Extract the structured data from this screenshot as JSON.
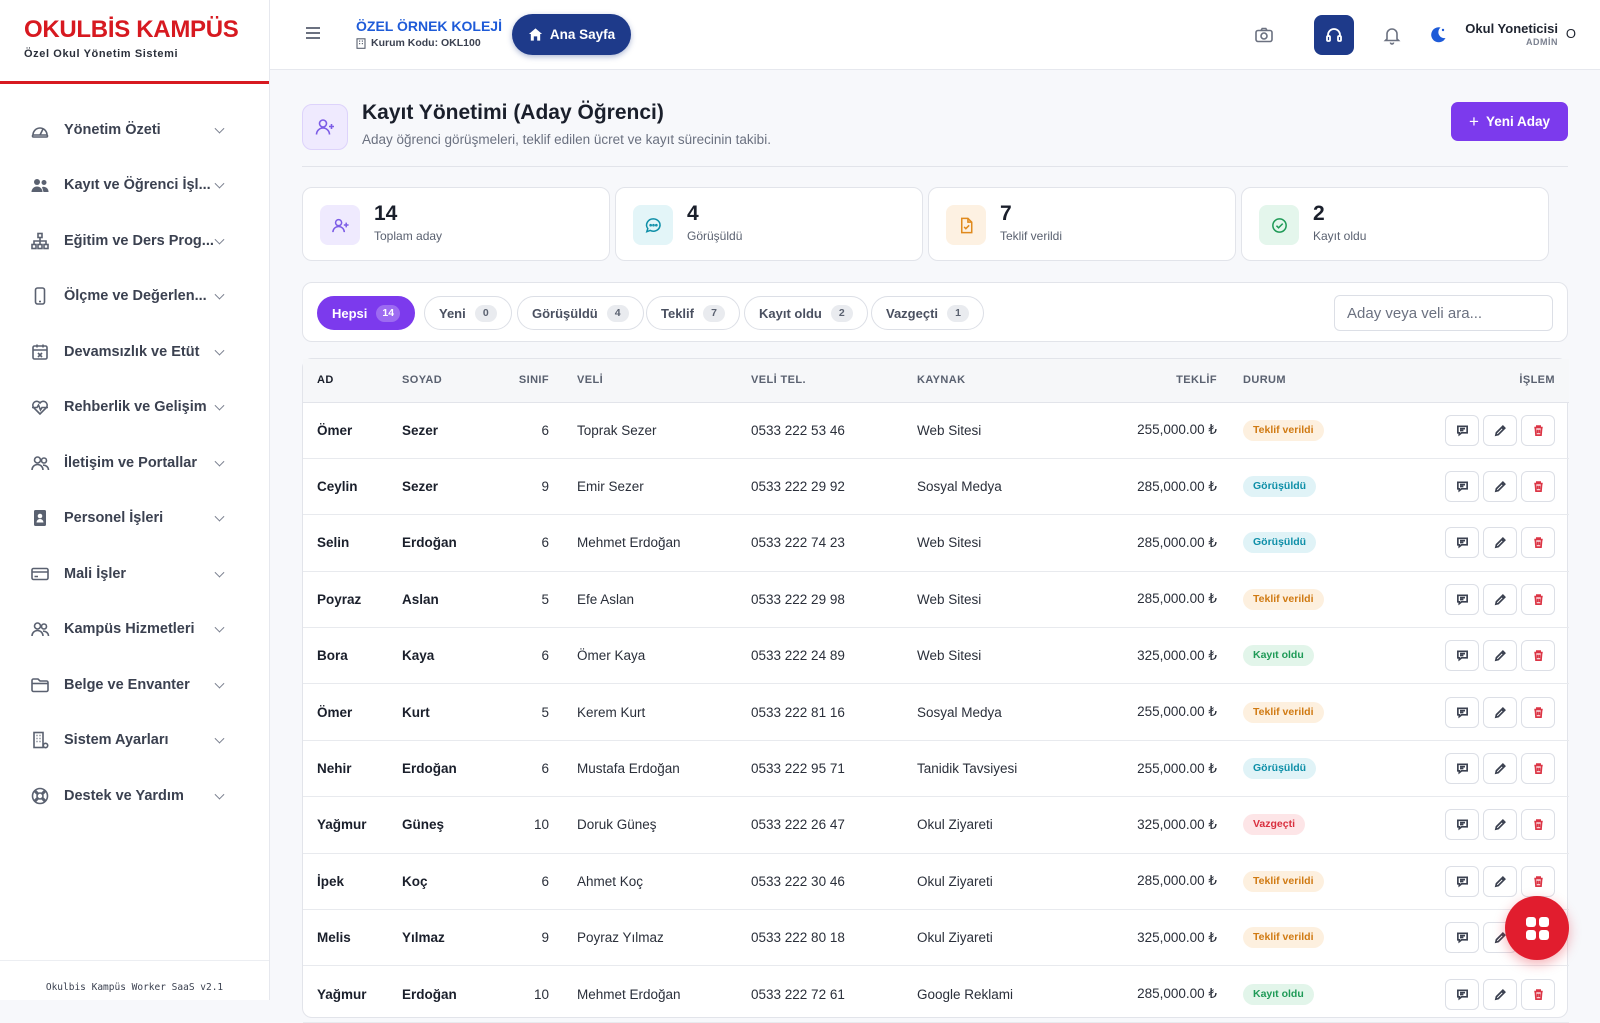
{
  "brand": {
    "title": "OKULBİS KAMPÜS",
    "subtitle": "Özel Okul Yönetim Sistemi",
    "footer": "Okulbis Kampüs Worker SaaS v2.1"
  },
  "sidebar": {
    "items": [
      {
        "label": "Yönetim Özeti",
        "icon": "dashboard-gauge-icon"
      },
      {
        "label": "Kayıt ve Öğrenci İşl...",
        "icon": "users-icon"
      },
      {
        "label": "Eğitim ve Ders Prog...",
        "icon": "sitemap-icon"
      },
      {
        "label": "Ölçme ve Değerlen...",
        "icon": "mobile-icon"
      },
      {
        "label": "Devamsızlık ve Etüt",
        "icon": "calendar-x-icon"
      },
      {
        "label": "Rehberlik ve Gelişim",
        "icon": "heart-pulse-icon"
      },
      {
        "label": "İletişim ve Portallar",
        "icon": "user-group-icon"
      },
      {
        "label": "Personel İşleri",
        "icon": "id-badge-icon"
      },
      {
        "label": "Mali İşler",
        "icon": "credit-card-icon"
      },
      {
        "label": "Kampüs Hizmetleri",
        "icon": "people-icon"
      },
      {
        "label": "Belge ve Envanter",
        "icon": "folder-icon"
      },
      {
        "label": "Sistem Ayarları",
        "icon": "building-icon"
      },
      {
        "label": "Destek ve Yardım",
        "icon": "lifebuoy-icon"
      }
    ]
  },
  "header": {
    "school_name": "ÖZEL ÖRNEK KOLEJİ",
    "school_code": "Kurum Kodu: OKL100",
    "home_label": "Ana Sayfa",
    "user_name": "Okul Yoneticisi",
    "user_role": "ADMİN",
    "user_initial": "O"
  },
  "page": {
    "title": "Kayıt Yönetimi (Aday Öğrenci)",
    "description": "Aday öğrenci görüşmeleri, teklif edilen ücret ve kayıt sürecinin takibi.",
    "new_button": "Yeni Aday"
  },
  "stats": [
    {
      "value": "14",
      "label": "Toplam aday",
      "color": "#7c5ce6",
      "bg": "#efeafe",
      "icon": "user-plus-icon"
    },
    {
      "value": "4",
      "label": "Görüşüldü",
      "color": "#0e8fa8",
      "bg": "#e3f5f8",
      "icon": "chat-bubble-icon"
    },
    {
      "value": "7",
      "label": "Teklif verildi",
      "color": "#e08a1e",
      "bg": "#fdf1e2",
      "icon": "document-icon"
    },
    {
      "value": "2",
      "label": "Kayıt oldu",
      "color": "#1f9a57",
      "bg": "#e4f6ec",
      "icon": "check-circle-icon"
    }
  ],
  "filters": [
    {
      "label": "Hepsi",
      "count": "14",
      "active": true
    },
    {
      "label": "Yeni",
      "count": "0"
    },
    {
      "label": "Görüşüldü",
      "count": "4"
    },
    {
      "label": "Teklif",
      "count": "7"
    },
    {
      "label": "Kayıt oldu",
      "count": "2"
    },
    {
      "label": "Vazgeçti",
      "count": "1"
    }
  ],
  "search": {
    "placeholder": "Aday veya veli ara..."
  },
  "table": {
    "columns": {
      "ad": "AD",
      "soyad": "SOYAD",
      "sinif": "SINIF",
      "veli": "VELİ",
      "tel": "VELİ TEL.",
      "kaynak": "KAYNAK",
      "teklif": "TEKLİF",
      "durum": "DURUM",
      "islem": "İŞLEM"
    },
    "rows": [
      {
        "ad": "Ömer",
        "soyad": "Sezer",
        "sinif": "6",
        "veli": "Toprak Sezer",
        "tel": "0533 222 53 46",
        "kaynak": "Web Sitesi",
        "teklif": "255,000.00 ₺",
        "durum": "Teklif verildi",
        "status": "teklif"
      },
      {
        "ad": "Ceylin",
        "soyad": "Sezer",
        "sinif": "9",
        "veli": "Emir Sezer",
        "tel": "0533 222 29 92",
        "kaynak": "Sosyal Medya",
        "teklif": "285,000.00 ₺",
        "durum": "Görüşüldü",
        "status": "gorusuldu"
      },
      {
        "ad": "Selin",
        "soyad": "Erdoğan",
        "sinif": "6",
        "veli": "Mehmet Erdoğan",
        "tel": "0533 222 74 23",
        "kaynak": "Web Sitesi",
        "teklif": "285,000.00 ₺",
        "durum": "Görüşüldü",
        "status": "gorusuldu"
      },
      {
        "ad": "Poyraz",
        "soyad": "Aslan",
        "sinif": "5",
        "veli": "Efe Aslan",
        "tel": "0533 222 29 98",
        "kaynak": "Web Sitesi",
        "teklif": "285,000.00 ₺",
        "durum": "Teklif verildi",
        "status": "teklif"
      },
      {
        "ad": "Bora",
        "soyad": "Kaya",
        "sinif": "6",
        "veli": "Ömer Kaya",
        "tel": "0533 222 24 89",
        "kaynak": "Web Sitesi",
        "teklif": "325,000.00 ₺",
        "durum": "Kayıt oldu",
        "status": "kayit"
      },
      {
        "ad": "Ömer",
        "soyad": "Kurt",
        "sinif": "5",
        "veli": "Kerem Kurt",
        "tel": "0533 222 81 16",
        "kaynak": "Sosyal Medya",
        "teklif": "255,000.00 ₺",
        "durum": "Teklif verildi",
        "status": "teklif"
      },
      {
        "ad": "Nehir",
        "soyad": "Erdoğan",
        "sinif": "6",
        "veli": "Mustafa Erdoğan",
        "tel": "0533 222 95 71",
        "kaynak": "Tanidik Tavsiyesi",
        "teklif": "255,000.00 ₺",
        "durum": "Görüşüldü",
        "status": "gorusuldu"
      },
      {
        "ad": "Yağmur",
        "soyad": "Güneş",
        "sinif": "10",
        "veli": "Doruk Güneş",
        "tel": "0533 222 26 47",
        "kaynak": "Okul Ziyareti",
        "teklif": "325,000.00 ₺",
        "durum": "Vazgeçti",
        "status": "vazgecti"
      },
      {
        "ad": "İpek",
        "soyad": "Koç",
        "sinif": "6",
        "veli": "Ahmet Koç",
        "tel": "0533 222 30 46",
        "kaynak": "Okul Ziyareti",
        "teklif": "285,000.00 ₺",
        "durum": "Teklif verildi",
        "status": "teklif"
      },
      {
        "ad": "Melis",
        "soyad": "Yılmaz",
        "sinif": "9",
        "veli": "Poyraz Yılmaz",
        "tel": "0533 222 80 18",
        "kaynak": "Okul Ziyareti",
        "teklif": "325,000.00 ₺",
        "durum": "Teklif verildi",
        "status": "teklif"
      },
      {
        "ad": "Yağmur",
        "soyad": "Erdoğan",
        "sinif": "10",
        "veli": "Mehmet Erdoğan",
        "tel": "0533 222 72 61",
        "kaynak": "Google Reklami",
        "teklif": "285,000.00 ₺",
        "durum": "Kayıt oldu",
        "status": "kayit"
      }
    ]
  },
  "status_colors": {
    "teklif": {
      "bg": "#fdf0df",
      "fg": "#d07a12"
    },
    "gorusuldu": {
      "bg": "#e0f3f7",
      "fg": "#0e8fa8"
    },
    "kayit": {
      "bg": "#e2f5ea",
      "fg": "#1f9a57"
    },
    "vazgecti": {
      "bg": "#fde5e7",
      "fg": "#d9303f"
    }
  },
  "colors": {
    "accent": "#7c3aed",
    "brand": "#d71920",
    "navy": "#1e3a8a"
  }
}
